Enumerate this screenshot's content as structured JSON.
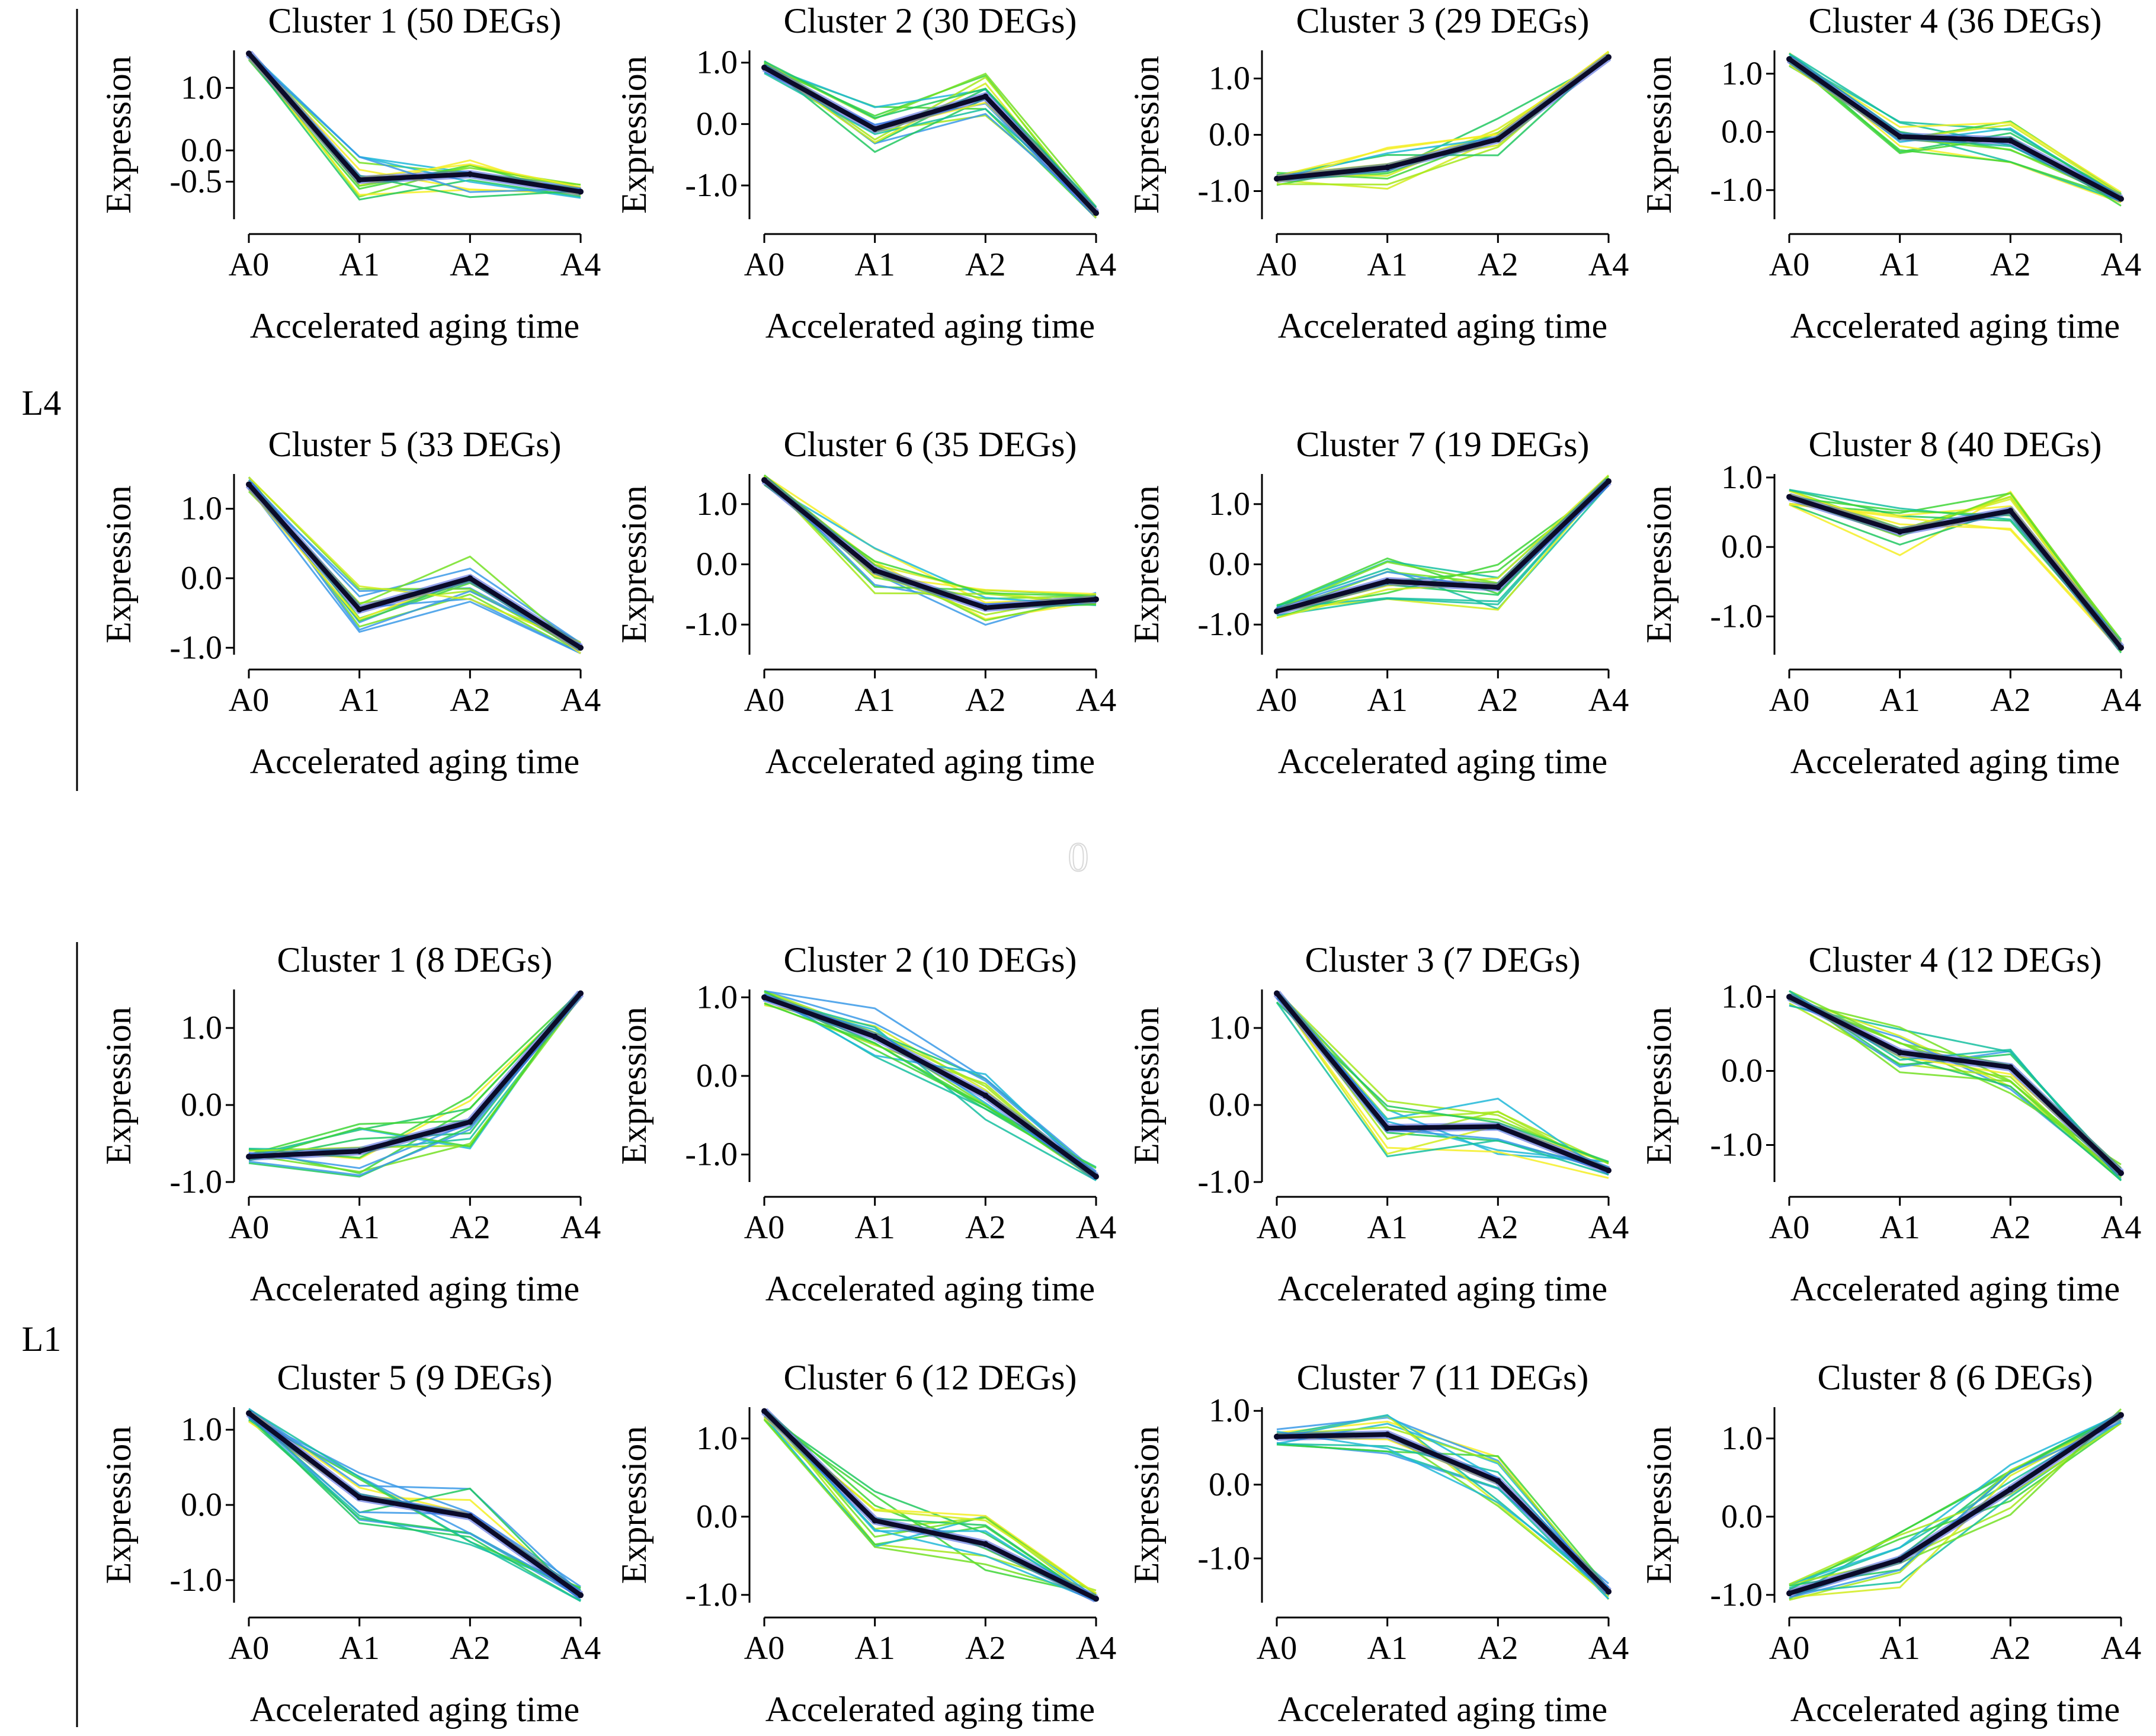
{
  "figure": {
    "groups": [
      {
        "label": "L4",
        "clusters": [
          {
            "title": "Cluster 1 (50 DEGs)",
            "ylim": [
              -1.1,
              1.6
            ],
            "yticks": [
              1.0,
              0.0,
              -0.5
            ],
            "ytick_labels": [
              "1.0",
              "0.0",
              "-0.5"
            ],
            "centroid": [
              1.55,
              -0.47,
              -0.38,
              -0.66
            ]
          },
          {
            "title": "Cluster 2 (30 DEGs)",
            "ylim": [
              -1.55,
              1.2
            ],
            "yticks": [
              1.0,
              0.0,
              -1.0
            ],
            "ytick_labels": [
              "1.0",
              "0.0",
              "-1.0"
            ],
            "centroid": [
              0.92,
              -0.08,
              0.45,
              -1.45
            ]
          },
          {
            "title": "Cluster 3 (29 DEGs)",
            "ylim": [
              -1.5,
              1.5
            ],
            "yticks": [
              1.0,
              0.0,
              -1.0
            ],
            "ytick_labels": [
              "1.0",
              "0.0",
              "-1.0"
            ],
            "centroid": [
              -0.78,
              -0.58,
              -0.08,
              1.38
            ]
          },
          {
            "title": "Cluster 4 (36 DEGs)",
            "ylim": [
              -1.5,
              1.4
            ],
            "yticks": [
              1.0,
              0.0,
              -1.0
            ],
            "ytick_labels": [
              "1.0",
              "0.0",
              "-1.0"
            ],
            "centroid": [
              1.25,
              -0.08,
              -0.15,
              -1.15
            ]
          },
          {
            "title": "Cluster 5 (33 DEGs)",
            "ylim": [
              -1.1,
              1.5
            ],
            "yticks": [
              1.0,
              0.0,
              -1.0
            ],
            "ytick_labels": [
              "1.0",
              "0.0",
              "-1.0"
            ],
            "centroid": [
              1.35,
              -0.45,
              0.0,
              -1.0
            ]
          },
          {
            "title": "Cluster 6 (35 DEGs)",
            "ylim": [
              -1.5,
              1.5
            ],
            "yticks": [
              1.0,
              0.0,
              -1.0
            ],
            "ytick_labels": [
              "1.0",
              "0.0",
              "-1.0"
            ],
            "centroid": [
              1.4,
              -0.1,
              -0.72,
              -0.58
            ]
          },
          {
            "title": "Cluster 7 (19 DEGs)",
            "ylim": [
              -1.5,
              1.5
            ],
            "yticks": [
              1.0,
              0.0,
              -1.0
            ],
            "ytick_labels": [
              "1.0",
              "0.0",
              "-1.0"
            ],
            "centroid": [
              -0.78,
              -0.28,
              -0.38,
              1.38
            ]
          },
          {
            "title": "Cluster 8 (40 DEGs)",
            "ylim": [
              -1.55,
              1.05
            ],
            "yticks": [
              1.0,
              0.0,
              -1.0
            ],
            "ytick_labels": [
              "1.0",
              "0.0",
              "-1.0"
            ],
            "centroid": [
              0.72,
              0.22,
              0.52,
              -1.45
            ]
          }
        ]
      },
      {
        "label": "L1",
        "clusters": [
          {
            "title": "Cluster 1 (8 DEGs)",
            "ylim": [
              -1.0,
              1.5
            ],
            "yticks": [
              1.0,
              0.0,
              -1.0
            ],
            "ytick_labels": [
              "1.0",
              "0.0",
              "-1.0"
            ],
            "centroid": [
              -0.67,
              -0.6,
              -0.22,
              1.45
            ]
          },
          {
            "title": "Cluster 2 (10 DEGs)",
            "ylim": [
              -1.35,
              1.1
            ],
            "yticks": [
              1.0,
              0.0,
              -1.0
            ],
            "ytick_labels": [
              "1.0",
              "0.0",
              "-1.0"
            ],
            "centroid": [
              1.0,
              0.5,
              -0.25,
              -1.28
            ]
          },
          {
            "title": "Cluster 3 (7 DEGs)",
            "ylim": [
              -1.0,
              1.5
            ],
            "yticks": [
              1.0,
              0.0,
              -1.0
            ],
            "ytick_labels": [
              "1.0",
              "0.0",
              "-1.0"
            ],
            "centroid": [
              1.45,
              -0.3,
              -0.28,
              -0.85
            ]
          },
          {
            "title": "Cluster 4 (12 DEGs)",
            "ylim": [
              -1.5,
              1.1
            ],
            "yticks": [
              1.0,
              0.0,
              -1.0
            ],
            "ytick_labels": [
              "1.0",
              "0.0",
              "-1.0"
            ],
            "centroid": [
              1.0,
              0.25,
              0.05,
              -1.38
            ]
          },
          {
            "title": "Cluster 5 (9 DEGs)",
            "ylim": [
              -1.3,
              1.3
            ],
            "yticks": [
              1.0,
              0.0,
              -1.0
            ],
            "ytick_labels": [
              "1.0",
              "0.0",
              "-1.0"
            ],
            "centroid": [
              1.22,
              0.1,
              -0.15,
              -1.2
            ]
          },
          {
            "title": "Cluster 6 (12 DEGs)",
            "ylim": [
              -1.1,
              1.4
            ],
            "yticks": [
              1.0,
              0.0,
              -1.0
            ],
            "ytick_labels": [
              "1.0",
              "0.0",
              "-1.0"
            ],
            "centroid": [
              1.35,
              -0.05,
              -0.35,
              -1.05
            ]
          },
          {
            "title": "Cluster 7 (11 DEGs)",
            "ylim": [
              -1.6,
              1.05
            ],
            "yticks": [
              1.0,
              0.0,
              -1.0
            ],
            "ytick_labels": [
              "1.0",
              "0.0",
              "-1.0"
            ],
            "centroid": [
              0.65,
              0.68,
              0.05,
              -1.45
            ]
          },
          {
            "title": "Cluster 8 (6 DEGs)",
            "ylim": [
              -1.1,
              1.4
            ],
            "yticks": [
              1.0,
              0.0,
              -1.0
            ],
            "ytick_labels": [
              "1.0",
              "0.0",
              "-1.0"
            ],
            "centroid": [
              -0.98,
              -0.55,
              0.35,
              1.3
            ]
          }
        ]
      }
    ],
    "xlabel": "Accelerated aging time",
    "ylabel": "Expression",
    "x_categories": [
      "A0",
      "A1",
      "A2",
      "A4"
    ],
    "mid_mark": "0",
    "colors": {
      "member_palette": [
        "#f5ee26",
        "#d2ec1e",
        "#a6e81c",
        "#74e024",
        "#3fd637",
        "#21c860",
        "#16c0a0",
        "#21b8d8",
        "#3b9ae8"
      ],
      "centroid": "#0b0b2a",
      "centroid_halo": "#3d55d8",
      "axis": "#000000"
    }
  },
  "chart_data": {
    "type": "line",
    "description_type": "multi-panel cluster expression profiles (member gene lines plus a dark centroid line)",
    "x": [
      "A0",
      "A1",
      "A2",
      "A4"
    ],
    "xlabel": "Accelerated aging time",
    "ylabel": "Expression",
    "panels": [
      {
        "group": "L4",
        "title": "Cluster 1 (50 DEGs)",
        "series": [
          {
            "name": "centroid",
            "values": [
              1.55,
              -0.47,
              -0.38,
              -0.66
            ]
          }
        ]
      },
      {
        "group": "L4",
        "title": "Cluster 2 (30 DEGs)",
        "series": [
          {
            "name": "centroid",
            "values": [
              0.92,
              -0.08,
              0.45,
              -1.45
            ]
          }
        ]
      },
      {
        "group": "L4",
        "title": "Cluster 3 (29 DEGs)",
        "series": [
          {
            "name": "centroid",
            "values": [
              -0.78,
              -0.58,
              -0.08,
              1.38
            ]
          }
        ]
      },
      {
        "group": "L4",
        "title": "Cluster 4 (36 DEGs)",
        "series": [
          {
            "name": "centroid",
            "values": [
              1.25,
              -0.08,
              -0.15,
              -1.15
            ]
          }
        ]
      },
      {
        "group": "L4",
        "title": "Cluster 5 (33 DEGs)",
        "series": [
          {
            "name": "centroid",
            "values": [
              1.35,
              -0.45,
              0.0,
              -1.0
            ]
          }
        ]
      },
      {
        "group": "L4",
        "title": "Cluster 6 (35 DEGs)",
        "series": [
          {
            "name": "centroid",
            "values": [
              1.4,
              -0.1,
              -0.72,
              -0.58
            ]
          }
        ]
      },
      {
        "group": "L4",
        "title": "Cluster 7 (19 DEGs)",
        "series": [
          {
            "name": "centroid",
            "values": [
              -0.78,
              -0.28,
              -0.38,
              1.38
            ]
          }
        ]
      },
      {
        "group": "L4",
        "title": "Cluster 8 (40 DEGs)",
        "series": [
          {
            "name": "centroid",
            "values": [
              0.72,
              0.22,
              0.52,
              -1.45
            ]
          }
        ]
      },
      {
        "group": "L1",
        "title": "Cluster 1 (8 DEGs)",
        "series": [
          {
            "name": "centroid",
            "values": [
              -0.67,
              -0.6,
              -0.22,
              1.45
            ]
          }
        ]
      },
      {
        "group": "L1",
        "title": "Cluster 2 (10 DEGs)",
        "series": [
          {
            "name": "centroid",
            "values": [
              1.0,
              0.5,
              -0.25,
              -1.28
            ]
          }
        ]
      },
      {
        "group": "L1",
        "title": "Cluster 3 (7 DEGs)",
        "series": [
          {
            "name": "centroid",
            "values": [
              1.45,
              -0.3,
              -0.28,
              -0.85
            ]
          }
        ]
      },
      {
        "group": "L1",
        "title": "Cluster 4 (12 DEGs)",
        "series": [
          {
            "name": "centroid",
            "values": [
              1.0,
              0.25,
              0.05,
              -1.38
            ]
          }
        ]
      },
      {
        "group": "L1",
        "title": "Cluster 5 (9 DEGs)",
        "series": [
          {
            "name": "centroid",
            "values": [
              1.22,
              0.1,
              -0.15,
              -1.2
            ]
          }
        ]
      },
      {
        "group": "L1",
        "title": "Cluster 6 (12 DEGs)",
        "series": [
          {
            "name": "centroid",
            "values": [
              1.35,
              -0.05,
              -0.35,
              -1.05
            ]
          }
        ]
      },
      {
        "group": "L1",
        "title": "Cluster 7 (11 DEGs)",
        "series": [
          {
            "name": "centroid",
            "values": [
              0.65,
              0.68,
              0.05,
              -1.45
            ]
          }
        ]
      },
      {
        "group": "L1",
        "title": "Cluster 8 (6 DEGs)",
        "series": [
          {
            "name": "centroid",
            "values": [
              -0.98,
              -0.55,
              0.35,
              1.3
            ]
          }
        ]
      }
    ]
  }
}
